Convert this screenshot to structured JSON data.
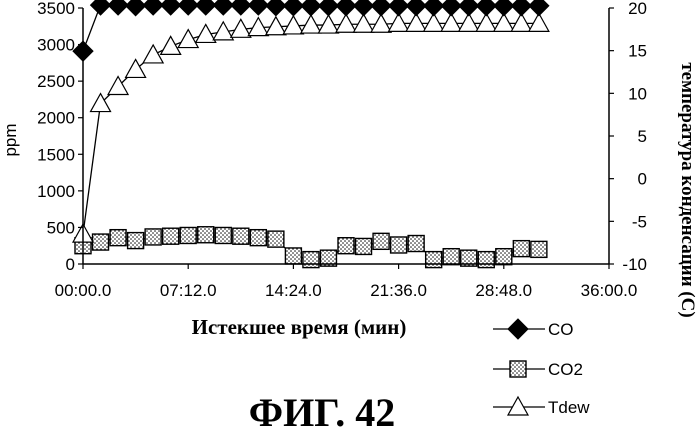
{
  "figure_caption": "ФИГ. 42",
  "chart_data": {
    "type": "line",
    "xlabel": "Истекшее время (мин)",
    "ylabel": "ppm",
    "y2label": "температура конденсации (С)",
    "x_ticks": [
      "00:00.0",
      "07:12.0",
      "14:24.0",
      "21:36.0",
      "28:48.0",
      "36:00.0"
    ],
    "x_tick_minutes": [
      0,
      7.2,
      14.4,
      21.6,
      28.8,
      36
    ],
    "xlim": [
      0,
      36
    ],
    "ylim": [
      0,
      3500
    ],
    "y_ticks": [
      0,
      500,
      1000,
      1500,
      2000,
      2500,
      3000,
      3500
    ],
    "y2lim": [
      -10,
      20
    ],
    "y2_ticks": [
      -10,
      -5,
      0,
      5,
      10,
      15,
      20
    ],
    "grid": false,
    "legend_position": "bottom-right",
    "series": [
      {
        "name": "CO",
        "axis": "left",
        "marker": "diamond",
        "x": [
          0,
          1.2,
          2.4,
          3.6,
          4.8,
          6.0,
          7.2,
          8.4,
          9.6,
          10.8,
          12.0,
          13.2,
          14.4,
          15.6,
          16.8,
          18.0,
          19.2,
          20.4,
          21.6,
          22.8,
          24.0,
          25.2,
          26.4,
          27.6,
          28.8,
          30.0,
          31.2
        ],
        "values": [
          2910,
          3540,
          3540,
          3530,
          3540,
          3540,
          3540,
          3540,
          3540,
          3540,
          3540,
          3530,
          3530,
          3530,
          3530,
          3530,
          3530,
          3530,
          3530,
          3530,
          3530,
          3530,
          3530,
          3530,
          3530,
          3530,
          3530
        ]
      },
      {
        "name": "CO2",
        "axis": "left",
        "marker": "square",
        "x": [
          0,
          1.2,
          2.4,
          3.6,
          4.8,
          6.0,
          7.2,
          8.4,
          9.6,
          10.8,
          12.0,
          13.2,
          14.4,
          15.6,
          16.8,
          18.0,
          19.2,
          20.4,
          21.6,
          22.8,
          24.0,
          25.2,
          26.4,
          27.6,
          28.8,
          30.0,
          31.2
        ],
        "values": [
          250,
          300,
          360,
          320,
          370,
          380,
          390,
          400,
          390,
          380,
          360,
          340,
          110,
          60,
          80,
          250,
          240,
          310,
          260,
          280,
          60,
          100,
          80,
          60,
          100,
          210,
          200
        ]
      },
      {
        "name": "Tdew",
        "axis": "right",
        "marker": "triangle",
        "x": [
          0,
          1.2,
          2.4,
          3.6,
          4.8,
          6.0,
          7.2,
          8.4,
          9.6,
          10.8,
          12.0,
          13.2,
          14.4,
          15.6,
          16.8,
          18.0,
          19.2,
          20.4,
          21.6,
          22.8,
          24.0,
          25.2,
          26.4,
          27.6,
          28.8,
          30.0,
          31.2
        ],
        "values": [
          -6.5,
          8.8,
          10.8,
          12.8,
          14.5,
          15.5,
          16.3,
          16.9,
          17.2,
          17.5,
          17.7,
          17.8,
          17.9,
          18.0,
          18.0,
          18.1,
          18.1,
          18.1,
          18.2,
          18.2,
          18.2,
          18.2,
          18.2,
          18.2,
          18.2,
          18.2,
          18.2
        ]
      }
    ]
  }
}
